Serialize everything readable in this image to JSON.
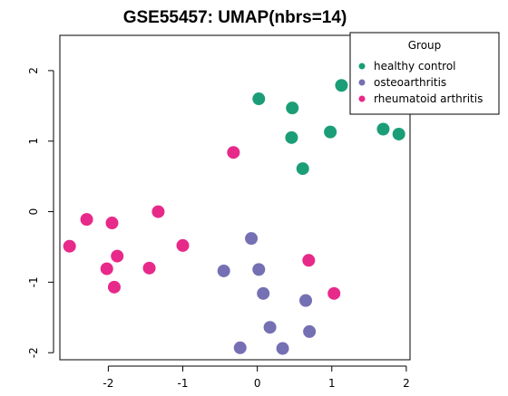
{
  "chart_data": {
    "type": "scatter",
    "title": "GSE55457: UMAP(nbrs=14)",
    "xlabel": "",
    "ylabel": "",
    "xlim": [
      -2.65,
      2.05
    ],
    "ylim": [
      -2.1,
      2.5
    ],
    "x_ticks": [
      -2,
      -1,
      0,
      1,
      2
    ],
    "x_tick_labels": [
      "-2",
      "-1",
      "0",
      "1",
      "2"
    ],
    "y_ticks": [
      -2,
      -1,
      0,
      1,
      2
    ],
    "y_tick_labels": [
      "-2",
      "-1",
      "0",
      "1",
      "2"
    ],
    "grid": false,
    "legend": {
      "title": "Group",
      "placement": "top-right"
    },
    "series": [
      {
        "name": "healthy control",
        "color": "#1b9e77",
        "points": [
          {
            "x": 0.02,
            "y": 1.6
          },
          {
            "x": 0.47,
            "y": 1.47
          },
          {
            "x": 1.13,
            "y": 1.79
          },
          {
            "x": 1.69,
            "y": 1.17
          },
          {
            "x": 1.9,
            "y": 1.1
          },
          {
            "x": 0.98,
            "y": 1.13
          },
          {
            "x": 0.46,
            "y": 1.05
          },
          {
            "x": 0.61,
            "y": 0.61
          }
        ]
      },
      {
        "name": "osteoarthritis",
        "color": "#7570b3",
        "points": [
          {
            "x": -0.08,
            "y": -0.38
          },
          {
            "x": -0.45,
            "y": -0.84
          },
          {
            "x": 0.02,
            "y": -0.82
          },
          {
            "x": 0.08,
            "y": -1.16
          },
          {
            "x": 0.65,
            "y": -1.26
          },
          {
            "x": 0.17,
            "y": -1.64
          },
          {
            "x": 0.7,
            "y": -1.7
          },
          {
            "x": -0.23,
            "y": -1.93
          },
          {
            "x": 0.34,
            "y": -1.94
          }
        ]
      },
      {
        "name": "rheumatoid arthritis",
        "color": "#e7298a",
        "points": [
          {
            "x": -0.32,
            "y": 0.84
          },
          {
            "x": -1.33,
            "y": 0.0
          },
          {
            "x": -2.29,
            "y": -0.11
          },
          {
            "x": -1.95,
            "y": -0.16
          },
          {
            "x": -2.52,
            "y": -0.49
          },
          {
            "x": -1.0,
            "y": -0.48
          },
          {
            "x": -1.88,
            "y": -0.63
          },
          {
            "x": -2.02,
            "y": -0.81
          },
          {
            "x": -1.45,
            "y": -0.8
          },
          {
            "x": -1.92,
            "y": -1.07
          },
          {
            "x": 0.69,
            "y": -0.69
          },
          {
            "x": 1.03,
            "y": -1.16
          }
        ]
      }
    ]
  }
}
